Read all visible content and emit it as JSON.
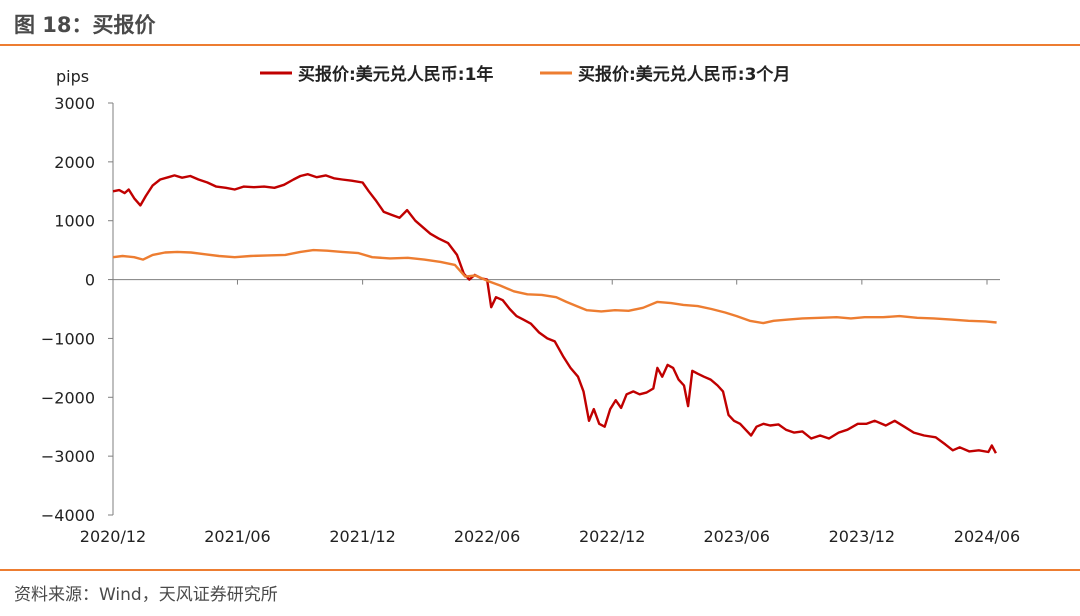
{
  "header": {
    "title": "图 18：买报价"
  },
  "footer": {
    "source": "资料来源：Wind，天风证券研究所"
  },
  "colors": {
    "accent": "#ED7D31",
    "series_1y": "#C00000",
    "series_3m": "#ED7D31"
  },
  "chart_data": {
    "type": "line",
    "title": "",
    "ylabel": "pips",
    "xlabel": "",
    "ylim": [
      -4000,
      3000
    ],
    "yticks": [
      3000,
      2000,
      1000,
      0,
      -1000,
      -2000,
      -3000,
      -4000
    ],
    "ytick_labels": [
      "3000",
      "2000",
      "1000",
      "0",
      "−1000",
      "−2000",
      "−3000",
      "−4000"
    ],
    "xlim": [
      "2020-12-01",
      "2024-06-20"
    ],
    "xticks": [
      "2020-12-01",
      "2021-06-01",
      "2021-12-01",
      "2022-06-01",
      "2022-12-01",
      "2023-06-01",
      "2023-12-01",
      "2024-06-01"
    ],
    "xtick_labels": [
      "2020/12",
      "2021/06",
      "2021/12",
      "2022/06",
      "2022/12",
      "2023/06",
      "2023/12",
      "2024/06"
    ],
    "grid": false,
    "legend": "top-center",
    "series": [
      {
        "name": "买报价:美元兑人民币:1年",
        "color": "#C00000",
        "points": [
          [
            "2020-12-01",
            1500
          ],
          [
            "2020-12-10",
            1520
          ],
          [
            "2020-12-18",
            1470
          ],
          [
            "2020-12-24",
            1530
          ],
          [
            "2021-01-01",
            1380
          ],
          [
            "2021-01-10",
            1260
          ],
          [
            "2021-01-18",
            1420
          ],
          [
            "2021-01-28",
            1600
          ],
          [
            "2021-02-08",
            1700
          ],
          [
            "2021-02-20",
            1740
          ],
          [
            "2021-03-01",
            1770
          ],
          [
            "2021-03-12",
            1730
          ],
          [
            "2021-03-24",
            1760
          ],
          [
            "2021-04-05",
            1700
          ],
          [
            "2021-04-18",
            1650
          ],
          [
            "2021-05-01",
            1580
          ],
          [
            "2021-05-15",
            1560
          ],
          [
            "2021-05-28",
            1530
          ],
          [
            "2021-06-10",
            1580
          ],
          [
            "2021-06-25",
            1570
          ],
          [
            "2021-07-10",
            1580
          ],
          [
            "2021-07-25",
            1560
          ],
          [
            "2021-08-08",
            1610
          ],
          [
            "2021-08-22",
            1700
          ],
          [
            "2021-09-01",
            1760
          ],
          [
            "2021-09-12",
            1790
          ],
          [
            "2021-09-25",
            1740
          ],
          [
            "2021-10-08",
            1770
          ],
          [
            "2021-10-20",
            1720
          ],
          [
            "2021-11-01",
            1700
          ],
          [
            "2021-11-15",
            1680
          ],
          [
            "2021-12-01",
            1650
          ],
          [
            "2021-12-10",
            1500
          ],
          [
            "2021-12-20",
            1350
          ],
          [
            "2022-01-01",
            1150
          ],
          [
            "2022-01-12",
            1100
          ],
          [
            "2022-01-24",
            1050
          ],
          [
            "2022-02-04",
            1180
          ],
          [
            "2022-02-16",
            1000
          ],
          [
            "2022-02-28",
            880
          ],
          [
            "2022-03-10",
            780
          ],
          [
            "2022-03-22",
            700
          ],
          [
            "2022-04-05",
            620
          ],
          [
            "2022-04-18",
            420
          ],
          [
            "2022-04-28",
            100
          ],
          [
            "2022-05-06",
            0
          ],
          [
            "2022-05-14",
            80
          ],
          [
            "2022-05-24",
            20
          ],
          [
            "2022-06-01",
            0
          ],
          [
            "2022-06-07",
            -470
          ],
          [
            "2022-06-14",
            -300
          ],
          [
            "2022-06-24",
            -350
          ],
          [
            "2022-07-04",
            -500
          ],
          [
            "2022-07-14",
            -620
          ],
          [
            "2022-07-24",
            -680
          ],
          [
            "2022-08-04",
            -750
          ],
          [
            "2022-08-16",
            -900
          ],
          [
            "2022-08-28",
            -1000
          ],
          [
            "2022-09-08",
            -1050
          ],
          [
            "2022-09-20",
            -1300
          ],
          [
            "2022-10-01",
            -1500
          ],
          [
            "2022-10-12",
            -1650
          ],
          [
            "2022-10-20",
            -1900
          ],
          [
            "2022-10-28",
            -2400
          ],
          [
            "2022-11-04",
            -2200
          ],
          [
            "2022-11-12",
            -2450
          ],
          [
            "2022-11-20",
            -2500
          ],
          [
            "2022-11-28",
            -2200
          ],
          [
            "2022-12-06",
            -2050
          ],
          [
            "2022-12-14",
            -2180
          ],
          [
            "2022-12-22",
            -1950
          ],
          [
            "2023-01-01",
            -1900
          ],
          [
            "2023-01-10",
            -1950
          ],
          [
            "2023-01-20",
            -1920
          ],
          [
            "2023-01-30",
            -1850
          ],
          [
            "2023-02-05",
            -1500
          ],
          [
            "2023-02-12",
            -1650
          ],
          [
            "2023-02-20",
            -1450
          ],
          [
            "2023-02-28",
            -1500
          ],
          [
            "2023-03-08",
            -1700
          ],
          [
            "2023-03-16",
            -1800
          ],
          [
            "2023-03-22",
            -2150
          ],
          [
            "2023-03-28",
            -1550
          ],
          [
            "2023-04-05",
            -1600
          ],
          [
            "2023-04-14",
            -1650
          ],
          [
            "2023-04-24",
            -1700
          ],
          [
            "2023-05-04",
            -1800
          ],
          [
            "2023-05-12",
            -1900
          ],
          [
            "2023-05-20",
            -2300
          ],
          [
            "2023-05-28",
            -2400
          ],
          [
            "2023-06-06",
            -2450
          ],
          [
            "2023-06-14",
            -2550
          ],
          [
            "2023-06-22",
            -2650
          ],
          [
            "2023-06-30",
            -2500
          ],
          [
            "2023-07-10",
            -2450
          ],
          [
            "2023-07-20",
            -2480
          ],
          [
            "2023-08-01",
            -2460
          ],
          [
            "2023-08-12",
            -2550
          ],
          [
            "2023-08-24",
            -2600
          ],
          [
            "2023-09-05",
            -2580
          ],
          [
            "2023-09-18",
            -2700
          ],
          [
            "2023-10-01",
            -2650
          ],
          [
            "2023-10-14",
            -2700
          ],
          [
            "2023-10-28",
            -2600
          ],
          [
            "2023-11-10",
            -2550
          ],
          [
            "2023-11-25",
            -2450
          ],
          [
            "2023-12-08",
            -2450
          ],
          [
            "2023-12-20",
            -2400
          ],
          [
            "2024-01-05",
            -2480
          ],
          [
            "2024-01-18",
            -2400
          ],
          [
            "2024-02-01",
            -2500
          ],
          [
            "2024-02-15",
            -2600
          ],
          [
            "2024-03-01",
            -2650
          ],
          [
            "2024-03-18",
            -2680
          ],
          [
            "2024-04-01",
            -2800
          ],
          [
            "2024-04-12",
            -2900
          ],
          [
            "2024-04-22",
            -2850
          ],
          [
            "2024-05-06",
            -2920
          ],
          [
            "2024-05-20",
            -2900
          ],
          [
            "2024-06-03",
            -2930
          ],
          [
            "2024-06-08",
            -2820
          ],
          [
            "2024-06-14",
            -2950
          ]
        ]
      },
      {
        "name": "买报价:美元兑人民币:3个月",
        "color": "#ED7D31",
        "points": [
          [
            "2020-12-01",
            380
          ],
          [
            "2020-12-15",
            400
          ],
          [
            "2021-01-01",
            380
          ],
          [
            "2021-01-14",
            340
          ],
          [
            "2021-01-28",
            420
          ],
          [
            "2021-02-15",
            460
          ],
          [
            "2021-03-05",
            470
          ],
          [
            "2021-03-25",
            460
          ],
          [
            "2021-04-15",
            430
          ],
          [
            "2021-05-05",
            400
          ],
          [
            "2021-05-28",
            380
          ],
          [
            "2021-06-20",
            400
          ],
          [
            "2021-07-15",
            410
          ],
          [
            "2021-08-10",
            420
          ],
          [
            "2021-09-01",
            470
          ],
          [
            "2021-09-20",
            500
          ],
          [
            "2021-10-10",
            490
          ],
          [
            "2021-11-01",
            470
          ],
          [
            "2021-11-25",
            450
          ],
          [
            "2021-12-15",
            380
          ],
          [
            "2022-01-10",
            360
          ],
          [
            "2022-02-05",
            370
          ],
          [
            "2022-03-01",
            340
          ],
          [
            "2022-03-25",
            300
          ],
          [
            "2022-04-15",
            250
          ],
          [
            "2022-04-30",
            50
          ],
          [
            "2022-05-15",
            70
          ],
          [
            "2022-06-01",
            -20
          ],
          [
            "2022-06-20",
            -100
          ],
          [
            "2022-07-10",
            -200
          ],
          [
            "2022-07-30",
            -250
          ],
          [
            "2022-08-20",
            -260
          ],
          [
            "2022-09-10",
            -300
          ],
          [
            "2022-09-25",
            -380
          ],
          [
            "2022-10-10",
            -450
          ],
          [
            "2022-10-25",
            -520
          ],
          [
            "2022-11-15",
            -540
          ],
          [
            "2022-12-05",
            -520
          ],
          [
            "2022-12-25",
            -530
          ],
          [
            "2023-01-15",
            -480
          ],
          [
            "2023-02-05",
            -380
          ],
          [
            "2023-02-25",
            -400
          ],
          [
            "2023-03-15",
            -430
          ],
          [
            "2023-04-05",
            -450
          ],
          [
            "2023-04-25",
            -500
          ],
          [
            "2023-05-15",
            -560
          ],
          [
            "2023-06-01",
            -620
          ],
          [
            "2023-06-20",
            -700
          ],
          [
            "2023-07-10",
            -740
          ],
          [
            "2023-07-25",
            -700
          ],
          [
            "2023-08-15",
            -680
          ],
          [
            "2023-09-05",
            -660
          ],
          [
            "2023-10-01",
            -650
          ],
          [
            "2023-10-25",
            -640
          ],
          [
            "2023-11-15",
            -660
          ],
          [
            "2023-12-05",
            -640
          ],
          [
            "2024-01-01",
            -640
          ],
          [
            "2024-01-25",
            -620
          ],
          [
            "2024-02-20",
            -650
          ],
          [
            "2024-03-15",
            -660
          ],
          [
            "2024-04-10",
            -680
          ],
          [
            "2024-05-05",
            -700
          ],
          [
            "2024-05-30",
            -710
          ],
          [
            "2024-06-15",
            -730
          ]
        ]
      }
    ]
  }
}
